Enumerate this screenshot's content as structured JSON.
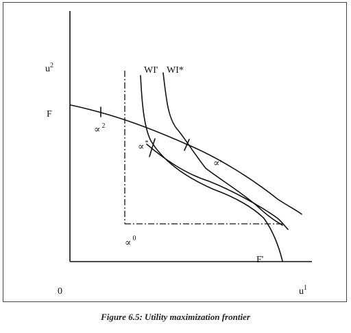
{
  "figure": {
    "caption": "Figure 6.5: Utility maximization frontier"
  },
  "labels": {
    "y_axis": "u",
    "y_axis_sup": "2",
    "x_axis": "u",
    "x_axis_sup": "1",
    "origin": "0",
    "frontier_start": "F",
    "frontier_end": "F'",
    "curve_wi_prime": "WI'",
    "curve_wi_star": "WI*",
    "point_alpha2": "∝",
    "point_alpha2_sup": "2",
    "point_alpha_star": "∝",
    "point_alpha_star_sup": "*",
    "point_alpha_prime": "∝'",
    "point_alpha0": "∝",
    "point_alpha0_sup": "0"
  }
}
